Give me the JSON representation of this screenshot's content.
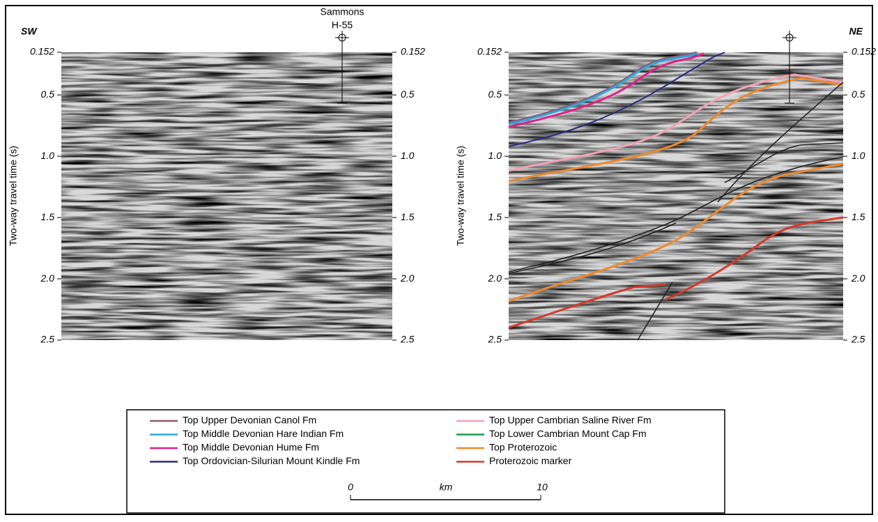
{
  "section_labels": {
    "left": "SW",
    "right": "NE"
  },
  "well": {
    "name": "Sammons",
    "id": "H-55"
  },
  "y_axis": {
    "label": "Two-way travel time (s)",
    "lim": [
      0.152,
      2.5
    ],
    "ticks": [
      0.152,
      0.5,
      {
        "value": 1,
        "label": "1.0"
      },
      1.5,
      {
        "value": 2,
        "label": "2.0"
      },
      2.5
    ]
  },
  "legend": [
    {
      "name": "Top Upper Devonian Canol Fm",
      "color": "#8c5a6e"
    },
    {
      "name": "Top Middle Devonian Hare Indian Fm",
      "color": "#2aa8e0"
    },
    {
      "name": "Top Middle Devonian Hume Fm",
      "color": "#e0208a"
    },
    {
      "name": "Top Ordovician-Silurian Mount Kindle Fm",
      "color": "#2b2a86"
    },
    {
      "name": "Top Upper Cambrian Saline River Fm",
      "color": "#f2a2b4"
    },
    {
      "name": "Top Lower Cambrian Mount Cap Fm",
      "color": "#1e9a4a"
    },
    {
      "name": "Top Proterozoic",
      "color": "#f0882a"
    },
    {
      "name": "Proterozoic marker",
      "color": "#d4392a"
    }
  ],
  "scale_bar": {
    "start": "0",
    "unit": "km",
    "end": "10"
  }
}
